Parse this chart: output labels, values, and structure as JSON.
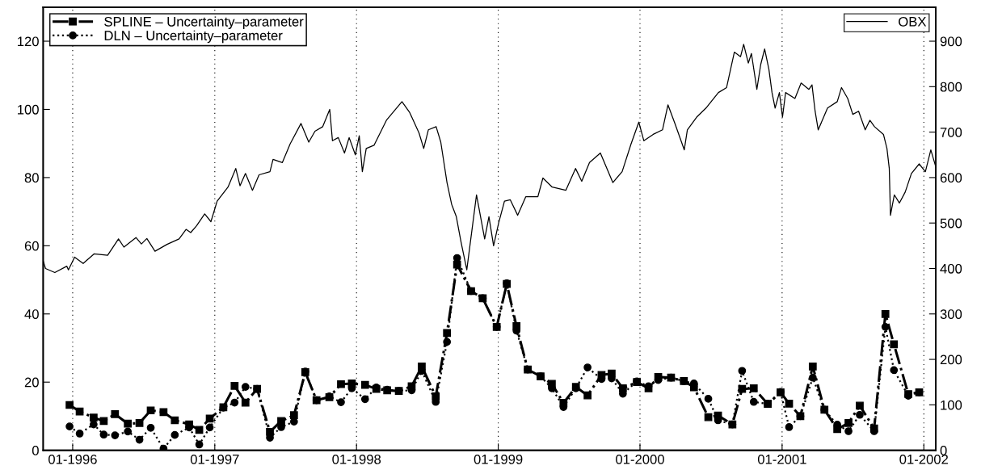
{
  "chart_data": {
    "type": "line",
    "xlim": [
      "1995-10-17",
      "2002-02-01"
    ],
    "xticks": [
      {
        "value": "1996-01-01",
        "label": "01-1996"
      },
      {
        "value": "1997-01-01",
        "label": "01-1997"
      },
      {
        "value": "1998-01-01",
        "label": "01-1998"
      },
      {
        "value": "1999-01-01",
        "label": "01-1999"
      },
      {
        "value": "2000-01-01",
        "label": "01-2000"
      },
      {
        "value": "2001-01-01",
        "label": "01-2001"
      },
      {
        "value": "2002-01-01",
        "label": "01-2002"
      }
    ],
    "ylim": [
      0,
      130
    ],
    "yticks": [
      0,
      20,
      40,
      60,
      80,
      100,
      120
    ],
    "y2lim": [
      0,
      975
    ],
    "y2ticks": [
      0,
      100,
      200,
      300,
      400,
      500,
      600,
      700,
      800,
      900
    ],
    "grid": "x",
    "legend": "top left",
    "series": [
      {
        "name": "SPLINE – Uncertainty–parameter",
        "color": "#000000",
        "marker": "square",
        "line_style": "dashdot",
        "x": [
          "1995-12-24",
          "1996-01-19",
          "1996-02-24",
          "1996-03-21",
          "1996-04-19",
          "1996-05-22",
          "1996-06-21",
          "1996-07-20",
          "1996-08-22",
          "1996-09-20",
          "1996-10-27",
          "1996-11-22",
          "1996-12-19",
          "1997-01-23",
          "1997-02-21",
          "1997-03-21",
          "1997-04-20",
          "1997-05-23",
          "1997-06-21",
          "1997-07-24",
          "1997-08-22",
          "1997-09-20",
          "1997-10-23",
          "1997-11-22",
          "1997-12-20",
          "1998-01-23",
          "1998-02-21",
          "1998-03-21",
          "1998-04-20",
          "1998-05-23",
          "1998-06-18",
          "1998-07-24",
          "1998-08-22",
          "1998-09-17",
          "1998-10-23",
          "1998-11-22",
          "1998-12-28",
          "1999-01-23",
          "1999-02-17",
          "1999-03-18",
          "1999-04-20",
          "1999-05-19",
          "1999-06-18",
          "1999-07-20",
          "1999-08-19",
          "1999-09-24",
          "1999-10-20",
          "1999-11-18",
          "1999-12-24",
          "2000-01-23",
          "2000-02-17",
          "2000-03-21",
          "2000-04-23",
          "2000-05-19",
          "2000-06-25",
          "2000-07-20",
          "2000-08-26",
          "2000-09-20",
          "2000-10-20",
          "2000-11-25",
          "2000-12-28",
          "2001-01-19",
          "2001-02-17",
          "2001-03-21",
          "2001-04-20",
          "2001-05-23",
          "2001-06-21",
          "2001-07-20",
          "2001-08-26",
          "2001-09-24",
          "2001-10-16",
          "2001-11-22",
          "2001-12-20"
        ],
        "values": [
          13.3,
          11.4,
          9.6,
          8.6,
          10.6,
          7.8,
          8.0,
          11.7,
          11.2,
          8.8,
          7.6,
          6.0,
          9.3,
          12.6,
          18.9,
          14.0,
          18.0,
          5.4,
          8.6,
          10.3,
          22.9,
          14.7,
          15.6,
          19.4,
          19.6,
          19.2,
          18.0,
          17.6,
          17.4,
          18.8,
          24.6,
          15.8,
          34.4,
          54.5,
          46.7,
          44.6,
          36.2,
          48.8,
          36.4,
          23.7,
          21.7,
          19.5,
          13.9,
          18.6,
          16.1,
          22.1,
          22.5,
          18.2,
          20.0,
          18.2,
          21.5,
          21.3,
          20.3,
          18.5,
          9.7,
          10.2,
          7.6,
          18.0,
          18.2,
          13.6,
          17.0,
          13.7,
          10.0,
          24.6,
          11.9,
          6.2,
          8.0,
          13.1,
          6.4,
          40.0,
          31.1,
          16.5,
          17.0
        ]
      },
      {
        "name": "DLN – Uncertainty–parameter",
        "color": "#000000",
        "marker": "circle",
        "line_style": "dotted",
        "x": [
          "1995-12-24",
          "1996-01-19",
          "1996-02-24",
          "1996-03-21",
          "1996-04-19",
          "1996-05-22",
          "1996-06-21",
          "1996-07-20",
          "1996-08-22",
          "1996-09-20",
          "1996-10-27",
          "1996-11-22",
          "1996-12-19",
          "1997-01-23",
          "1997-02-21",
          "1997-03-21",
          "1997-04-20",
          "1997-05-23",
          "1997-06-21",
          "1997-07-24",
          "1997-08-22",
          "1997-09-20",
          "1997-10-23",
          "1997-11-22",
          "1997-12-20",
          "1998-01-23",
          "1998-02-21",
          "1998-03-21",
          "1998-04-20",
          "1998-05-23",
          "1998-06-18",
          "1998-07-24",
          "1998-08-22",
          "1998-09-17",
          "1998-10-23",
          "1998-11-22",
          "1998-12-28",
          "1999-01-23",
          "1999-02-17",
          "1999-03-18",
          "1999-04-20",
          "1999-05-19",
          "1999-06-18",
          "1999-07-20",
          "1999-08-19",
          "1999-09-24",
          "1999-10-20",
          "1999-11-18",
          "1999-12-24",
          "2000-01-23",
          "2000-02-17",
          "2000-03-21",
          "2000-04-23",
          "2000-05-19",
          "2000-06-25",
          "2000-07-20",
          "2000-08-26",
          "2000-09-20",
          "2000-10-20",
          "2000-11-25",
          "2000-12-28",
          "2001-01-19",
          "2001-02-17",
          "2001-03-21",
          "2001-04-20",
          "2001-05-23",
          "2001-06-21",
          "2001-07-20",
          "2001-08-26",
          "2001-09-24",
          "2001-10-16",
          "2001-11-22",
          "2001-12-20"
        ],
        "values": [
          7.0,
          4.9,
          7.6,
          4.6,
          4.4,
          5.5,
          3.1,
          6.6,
          0.5,
          4.5,
          6.7,
          1.7,
          6.7,
          12.5,
          14.0,
          18.6,
          18.0,
          3.7,
          6.8,
          8.4,
          23.1,
          14.7,
          15.8,
          14.1,
          18.2,
          15.0,
          18.4,
          17.8,
          17.4,
          17.6,
          23.3,
          14.2,
          31.8,
          56.4,
          46.7,
          44.6,
          36.2,
          49.0,
          35.1,
          23.7,
          21.7,
          18.2,
          12.7,
          18.2,
          24.3,
          20.9,
          21.1,
          16.6,
          20.2,
          18.8,
          20.6,
          21.3,
          20.3,
          19.6,
          15.1,
          8.8,
          7.6,
          23.3,
          14.2,
          13.6,
          17.1,
          6.8,
          10.0,
          21.3,
          11.9,
          7.5,
          5.6,
          10.4,
          5.6,
          36.2,
          23.5,
          16.0,
          17.0
        ]
      },
      {
        "name": "OBX",
        "color": "#000000",
        "marker": "none",
        "line_style": "solid",
        "axis": "y2",
        "x": [
          "1995-10-17",
          "1995-10-23",
          "1995-11-16",
          "1995-12-17",
          "1995-12-21",
          "1996-01-06",
          "1996-01-28",
          "1996-02-25",
          "1996-03-31",
          "1996-04-28",
          "1996-05-12",
          "1996-06-12",
          "1996-06-26",
          "1996-07-10",
          "1996-07-31",
          "1996-08-31",
          "1996-10-01",
          "1996-10-19",
          "1996-10-31",
          "1996-11-15",
          "1996-12-06",
          "1996-12-22",
          "1997-01-07",
          "1997-02-04",
          "1997-02-24",
          "1997-03-07",
          "1997-03-21",
          "1997-04-08",
          "1997-04-25",
          "1997-05-23",
          "1997-05-31",
          "1997-06-24",
          "1997-07-14",
          "1997-08-11",
          "1997-08-31",
          "1997-09-16",
          "1997-10-06",
          "1997-10-24",
          "1997-10-31",
          "1997-11-15",
          "1997-12-01",
          "1997-12-13",
          "1997-12-29",
          "1998-01-08",
          "1998-01-16",
          "1998-01-26",
          "1998-02-15",
          "1998-03-19",
          "1998-04-28",
          "1998-05-18",
          "1998-06-11",
          "1998-06-23",
          "1998-07-05",
          "1998-07-25",
          "1998-08-06",
          "1998-08-22",
          "1998-09-03",
          "1998-09-15",
          "1998-09-27",
          "1998-10-12",
          "1998-11-06",
          "1998-11-27",
          "1998-12-08",
          "1998-12-20",
          "1999-01-02",
          "1999-01-17",
          "1999-02-01",
          "1999-02-20",
          "1999-03-13",
          "1999-04-13",
          "1999-04-26",
          "1999-05-20",
          "1999-06-24",
          "1999-07-19",
          "1999-08-04",
          "1999-08-24",
          "1999-09-21",
          "1999-10-23",
          "1999-11-16",
          "1999-12-09",
          "1999-12-29",
          "2000-01-11",
          "2000-02-04",
          "2000-02-28",
          "2000-03-13",
          "2000-03-31",
          "2000-04-24",
          "2000-05-02",
          "2000-05-26",
          "2000-06-19",
          "2000-07-21",
          "2000-08-11",
          "2000-08-31",
          "2000-09-16",
          "2000-09-24",
          "2000-10-06",
          "2000-10-14",
          "2000-10-28",
          "2000-11-07",
          "2000-11-17",
          "2000-11-28",
          "2000-12-06",
          "2000-12-14",
          "2000-12-25",
          "2001-01-02",
          "2001-01-10",
          "2001-02-03",
          "2001-02-19",
          "2001-03-11",
          "2001-03-19",
          "2001-03-27",
          "2001-04-04",
          "2001-04-16",
          "2001-04-28",
          "2001-05-23",
          "2001-06-03",
          "2001-06-19",
          "2001-07-02",
          "2001-07-17",
          "2001-08-03",
          "2001-08-15",
          "2001-08-27",
          "2001-09-19",
          "2001-09-28",
          "2001-10-04",
          "2001-10-07",
          "2001-10-17",
          "2001-10-30",
          "2001-11-14",
          "2001-11-30",
          "2001-12-20",
          "2002-01-05",
          "2002-01-19",
          "2002-02-01"
        ],
        "values": [
          417,
          400,
          391,
          405,
          397,
          425,
          411,
          432,
          429,
          465,
          447,
          468,
          454,
          466,
          438,
          453,
          465,
          486,
          479,
          494,
          520,
          503,
          548,
          579,
          620,
          582,
          609,
          572,
          606,
          613,
          640,
          633,
          674,
          719,
          678,
          702,
          712,
          750,
          681,
          688,
          654,
          688,
          650,
          692,
          613,
          664,
          671,
          726,
          767,
          743,
          698,
          664,
          705,
          712,
          678,
          589,
          541,
          514,
          459,
          397,
          562,
          465,
          514,
          450,
          500,
          548,
          551,
          517,
          558,
          558,
          599,
          579,
          572,
          620,
          592,
          633,
          654,
          589,
          613,
          674,
          722,
          681,
          695,
          705,
          760,
          719,
          661,
          705,
          733,
          753,
          787,
          798,
          876,
          866,
          893,
          852,
          873,
          794,
          849,
          883,
          838,
          787,
          753,
          787,
          733,
          787,
          774,
          808,
          794,
          804,
          746,
          705,
          729,
          753,
          767,
          798,
          774,
          739,
          746,
          705,
          726,
          712,
          695,
          664,
          620,
          517,
          562,
          544,
          568,
          609,
          630,
          613,
          661,
          623
        ]
      }
    ]
  }
}
